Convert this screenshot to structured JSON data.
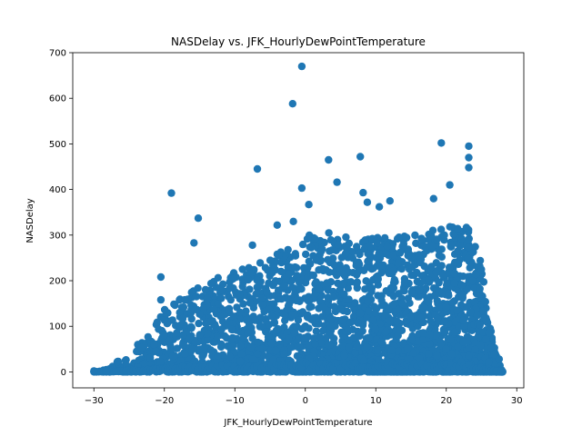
{
  "chart_data": {
    "type": "scatter",
    "title": "NASDelay vs. JFK_HourlyDewPointTemperature",
    "xlabel": "JFK_HourlyDewPointTemperature",
    "ylabel": "NASDelay",
    "xlim": [
      -33,
      31
    ],
    "ylim": [
      -35,
      700
    ],
    "xticks": [
      -30,
      -20,
      -10,
      0,
      10,
      20,
      30
    ],
    "yticks": [
      0,
      100,
      200,
      300,
      400,
      500,
      600,
      700
    ],
    "grid": false,
    "marker_color": "#1f77b4",
    "outliers": [
      {
        "x": -0.5,
        "y": 670
      },
      {
        "x": -1.8,
        "y": 588
      },
      {
        "x": 19.3,
        "y": 502
      },
      {
        "x": 23.2,
        "y": 495
      },
      {
        "x": 23.2,
        "y": 470
      },
      {
        "x": 3.3,
        "y": 465
      },
      {
        "x": 7.8,
        "y": 472
      },
      {
        "x": 23.2,
        "y": 448
      },
      {
        "x": -6.8,
        "y": 445
      },
      {
        "x": 4.5,
        "y": 416
      },
      {
        "x": 20.5,
        "y": 410
      },
      {
        "x": -0.5,
        "y": 403
      },
      {
        "x": 8.2,
        "y": 393
      },
      {
        "x": -19.0,
        "y": 392
      },
      {
        "x": 18.2,
        "y": 380
      },
      {
        "x": 12.0,
        "y": 375
      },
      {
        "x": 8.8,
        "y": 372
      },
      {
        "x": 10.5,
        "y": 362
      },
      {
        "x": 0.5,
        "y": 367
      },
      {
        "x": -15.2,
        "y": 337
      },
      {
        "x": -1.7,
        "y": 330
      },
      {
        "x": -4.0,
        "y": 322
      },
      {
        "x": -15.8,
        "y": 283
      },
      {
        "x": -7.5,
        "y": 278
      },
      {
        "x": -20.5,
        "y": 208
      },
      {
        "x": -20.5,
        "y": 158
      },
      {
        "x": -30.0,
        "y": 2
      },
      {
        "x": -28.2,
        "y": 2
      },
      {
        "x": 27.5,
        "y": 28
      },
      {
        "x": 27.2,
        "y": 2
      },
      {
        "x": 27.8,
        "y": 2
      }
    ],
    "envelope": [
      {
        "x": -30,
        "y": 0
      },
      {
        "x": -27,
        "y": 20
      },
      {
        "x": -25,
        "y": 50
      },
      {
        "x": -22,
        "y": 80
      },
      {
        "x": -20,
        "y": 140
      },
      {
        "x": -17,
        "y": 180
      },
      {
        "x": -14,
        "y": 200
      },
      {
        "x": -10,
        "y": 220
      },
      {
        "x": -7,
        "y": 240
      },
      {
        "x": -4,
        "y": 260
      },
      {
        "x": -1,
        "y": 290
      },
      {
        "x": 2,
        "y": 310
      },
      {
        "x": 5,
        "y": 300
      },
      {
        "x": 8,
        "y": 290
      },
      {
        "x": 12,
        "y": 300
      },
      {
        "x": 16,
        "y": 300
      },
      {
        "x": 20,
        "y": 320
      },
      {
        "x": 23,
        "y": 320
      },
      {
        "x": 25,
        "y": 240
      },
      {
        "x": 26,
        "y": 120
      },
      {
        "x": 27,
        "y": 40
      },
      {
        "x": 28,
        "y": 0
      }
    ]
  }
}
